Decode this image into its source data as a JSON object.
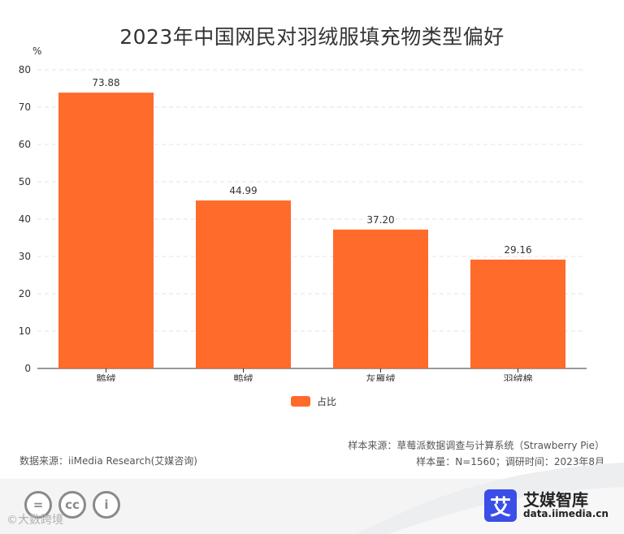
{
  "chart_data": {
    "type": "bar",
    "title": "2023年中国网民对羽绒服填充物类型偏好",
    "ylabel": "%",
    "xlabel": "",
    "categories": [
      "鹅绒",
      "鸭绒",
      "灰雁绒",
      "羽绒棉"
    ],
    "series": [
      {
        "name": "占比",
        "values": [
          73.88,
          44.99,
          37.2,
          29.16
        ],
        "labels": [
          "73.88",
          "44.99",
          "37.20",
          "29.16"
        ]
      }
    ],
    "ylim": [
      0,
      80
    ],
    "yticks": [
      0,
      10,
      20,
      30,
      40,
      50,
      60,
      70,
      80
    ],
    "grid": true,
    "legend_position": "bottom-center"
  },
  "colors": {
    "bar": "#ff6b2b",
    "grid": "#e3e3e3",
    "axis": "#333333"
  },
  "footer": {
    "source_left": "数据来源：iiMedia Research(艾媒咨询)",
    "sample_source": "样本来源：草莓派数据调查与计算系统（Strawberry Pie）",
    "sample_info": "样本量：N=1560；调研时间：2023年8月",
    "license_icons": [
      "equals-icon",
      "cc-icon",
      "person-icon"
    ],
    "license_symbols": [
      "=",
      "cc",
      "i"
    ],
    "watermark": "©大数跨境",
    "brand_name": "艾媒智库",
    "brand_url": "data.iimedia.cn",
    "brand_mark": "艾"
  }
}
